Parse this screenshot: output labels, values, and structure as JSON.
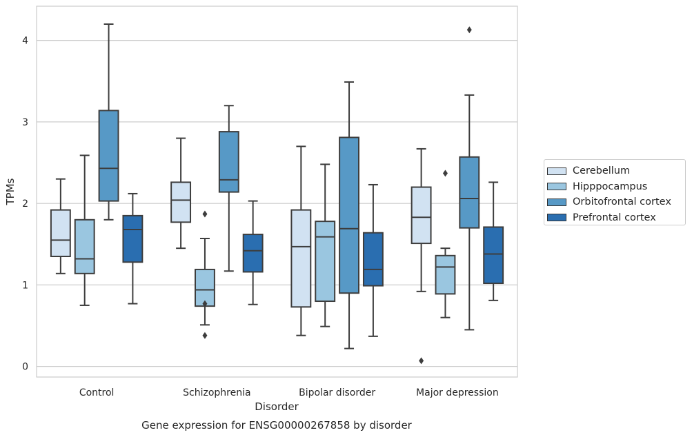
{
  "chart_data": {
    "type": "boxplot",
    "title": "Gene expression for ENSG00000267858 by disorder",
    "xlabel": "Disorder",
    "ylabel": "TPMs",
    "categories": [
      "Control",
      "Schizophrenia",
      "Bipolar disorder",
      "Major depression"
    ],
    "yticks": [
      "0",
      "1",
      "2",
      "3",
      "4"
    ],
    "ylim": [
      -0.13,
      4.42
    ],
    "grid": "horizontal",
    "legend_position": "right",
    "series": [
      {
        "name": "Cerebellum",
        "color": "#d1e2f2",
        "boxes": [
          {
            "whisker_low": 1.14,
            "q1": 1.35,
            "median": 1.55,
            "q3": 1.92,
            "whisker_high": 2.3,
            "outliers": []
          },
          {
            "whisker_low": 1.45,
            "q1": 1.77,
            "median": 2.04,
            "q3": 2.26,
            "whisker_high": 2.8,
            "outliers": []
          },
          {
            "whisker_low": 0.38,
            "q1": 0.73,
            "median": 1.47,
            "q3": 1.92,
            "whisker_high": 2.7,
            "outliers": []
          },
          {
            "whisker_low": 0.92,
            "q1": 1.51,
            "median": 1.83,
            "q3": 2.2,
            "whisker_high": 2.67,
            "outliers": [
              0.07
            ]
          }
        ]
      },
      {
        "name": "Hipppocampus",
        "color": "#9ac6e0",
        "boxes": [
          {
            "whisker_low": 0.75,
            "q1": 1.14,
            "median": 1.32,
            "q3": 1.8,
            "whisker_high": 2.59,
            "outliers": []
          },
          {
            "whisker_low": 0.51,
            "q1": 0.74,
            "median": 0.94,
            "q3": 1.19,
            "whisker_high": 1.57,
            "outliers": [
              0.77,
              0.38,
              1.87
            ]
          },
          {
            "whisker_low": 0.49,
            "q1": 0.8,
            "median": 1.59,
            "q3": 1.78,
            "whisker_high": 2.48,
            "outliers": []
          },
          {
            "whisker_low": 0.6,
            "q1": 0.89,
            "median": 1.22,
            "q3": 1.36,
            "whisker_high": 1.45,
            "outliers": [
              2.37
            ]
          }
        ]
      },
      {
        "name": "Orbitofrontal cortex",
        "color": "#5799c6",
        "boxes": [
          {
            "whisker_low": 1.8,
            "q1": 2.03,
            "median": 2.43,
            "q3": 3.14,
            "whisker_high": 4.2,
            "outliers": []
          },
          {
            "whisker_low": 1.17,
            "q1": 2.14,
            "median": 2.29,
            "q3": 2.88,
            "whisker_high": 3.2,
            "outliers": []
          },
          {
            "whisker_low": 0.22,
            "q1": 0.9,
            "median": 1.69,
            "q3": 2.81,
            "whisker_high": 3.49,
            "outliers": []
          },
          {
            "whisker_low": 0.45,
            "q1": 1.7,
            "median": 2.06,
            "q3": 2.57,
            "whisker_high": 3.33,
            "outliers": [
              4.13
            ]
          }
        ]
      },
      {
        "name": "Prefrontal cortex",
        "color": "#2a6eb0",
        "boxes": [
          {
            "whisker_low": 0.77,
            "q1": 1.28,
            "median": 1.68,
            "q3": 1.85,
            "whisker_high": 2.12,
            "outliers": []
          },
          {
            "whisker_low": 0.76,
            "q1": 1.16,
            "median": 1.42,
            "q3": 1.62,
            "whisker_high": 2.03,
            "outliers": []
          },
          {
            "whisker_low": 0.37,
            "q1": 0.99,
            "median": 1.19,
            "q3": 1.64,
            "whisker_high": 2.23,
            "outliers": []
          },
          {
            "whisker_low": 0.81,
            "q1": 1.02,
            "median": 1.38,
            "q3": 1.71,
            "whisker_high": 2.26,
            "outliers": []
          }
        ]
      }
    ]
  }
}
